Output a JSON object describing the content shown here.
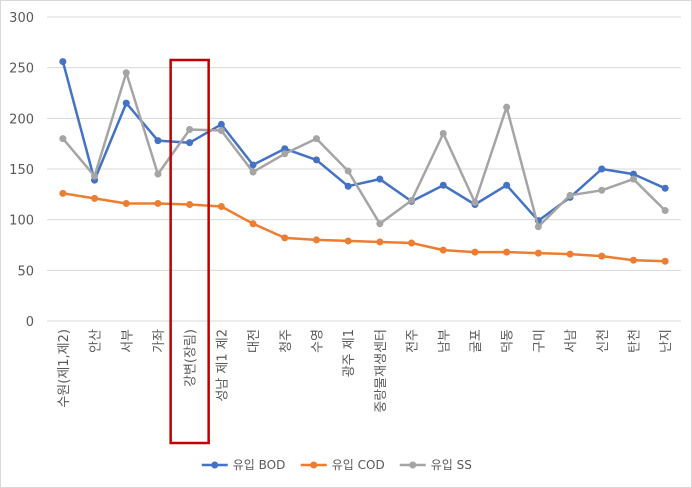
{
  "chart_data": {
    "type": "line",
    "categories": [
      "수원(제1,제2)",
      "안산",
      "서부",
      "가좌",
      "강변(장림)",
      "성남 제1 제2",
      "대전",
      "청주",
      "수영",
      "광주 제1",
      "중랑물재생센터",
      "전주",
      "남부",
      "굴포",
      "덕동",
      "구미",
      "서남",
      "신천",
      "탄천",
      "난지"
    ],
    "series": [
      {
        "name": "유입 BOD",
        "color": "#4472C4",
        "values": [
          256,
          139,
          215,
          178,
          176,
          194,
          154,
          170,
          159,
          133,
          140,
          118,
          134,
          115,
          134,
          99,
          122,
          150,
          145,
          131
        ]
      },
      {
        "name": "유입 COD",
        "color": "#ED7D31",
        "values": [
          126,
          121,
          116,
          116,
          115,
          113,
          96,
          82,
          80,
          79,
          78,
          77,
          70,
          68,
          68,
          67,
          66,
          64,
          60,
          59
        ]
      },
      {
        "name": "유입 SS",
        "color": "#A5A5A5",
        "values": [
          180,
          143,
          245,
          145,
          189,
          188,
          147,
          165,
          180,
          148,
          96,
          119,
          185,
          117,
          211,
          93,
          124,
          129,
          140,
          109
        ]
      }
    ],
    "ylim": [
      0,
      300
    ],
    "yticks": [
      0,
      50,
      100,
      150,
      200,
      250,
      300
    ],
    "grid": true,
    "legend": "bottom",
    "highlight": {
      "category_index": 4,
      "color": "#C00000"
    }
  }
}
